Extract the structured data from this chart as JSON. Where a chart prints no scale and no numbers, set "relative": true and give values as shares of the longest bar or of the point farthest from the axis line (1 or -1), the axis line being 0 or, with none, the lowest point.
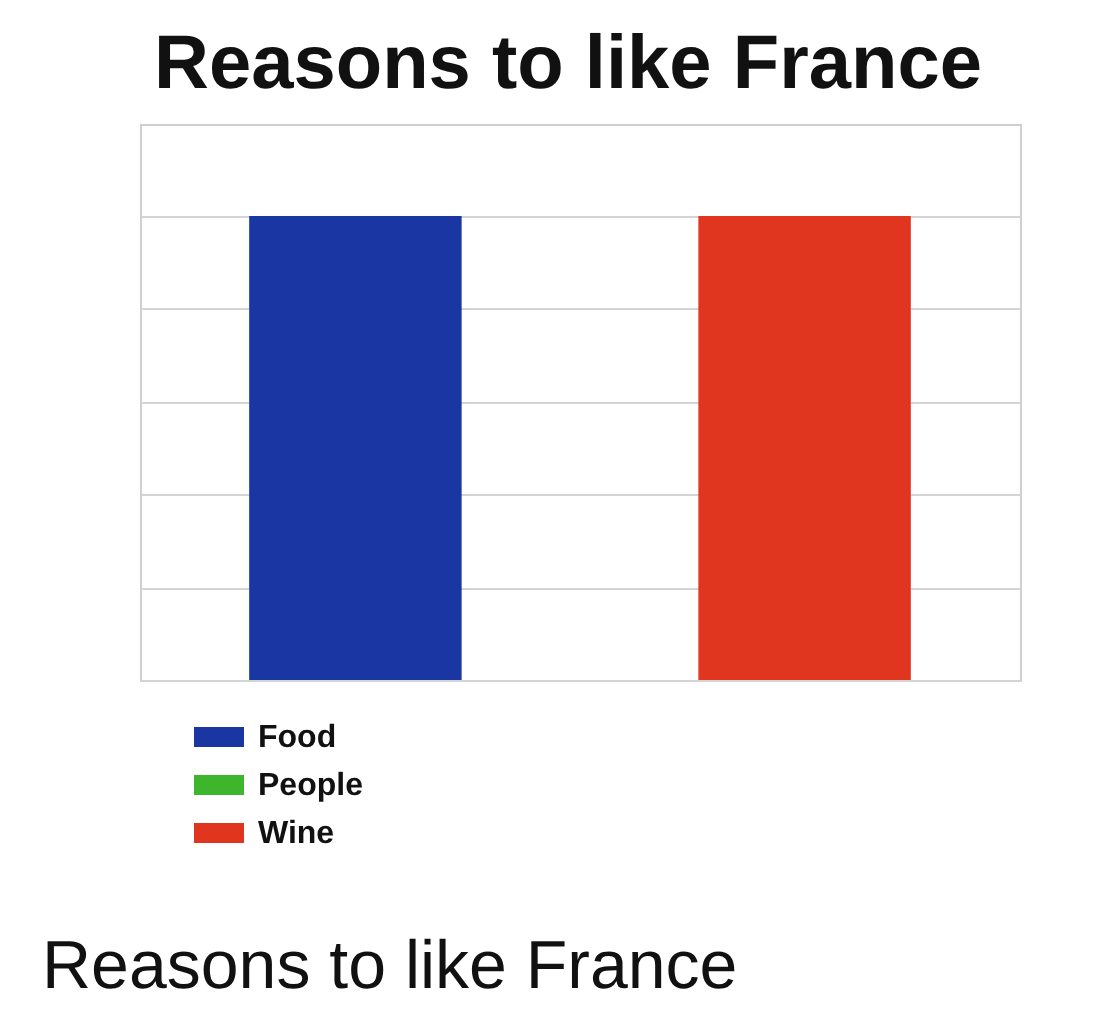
{
  "chart_data": {
    "type": "bar",
    "title": "Reasons to like France",
    "categories": [
      null
    ],
    "series": [
      {
        "name": "Food",
        "color": "#1a36a2",
        "values": [
          1
        ]
      },
      {
        "name": "People",
        "color": "#3db52c",
        "values": [
          0
        ]
      },
      {
        "name": "Wine",
        "color": "#e0361f",
        "values": [
          1
        ]
      }
    ],
    "relative": true,
    "grid": "y",
    "legend": "bottom left",
    "tick_labels": false,
    "annotations": [
      "Reasons to like France"
    ]
  }
}
